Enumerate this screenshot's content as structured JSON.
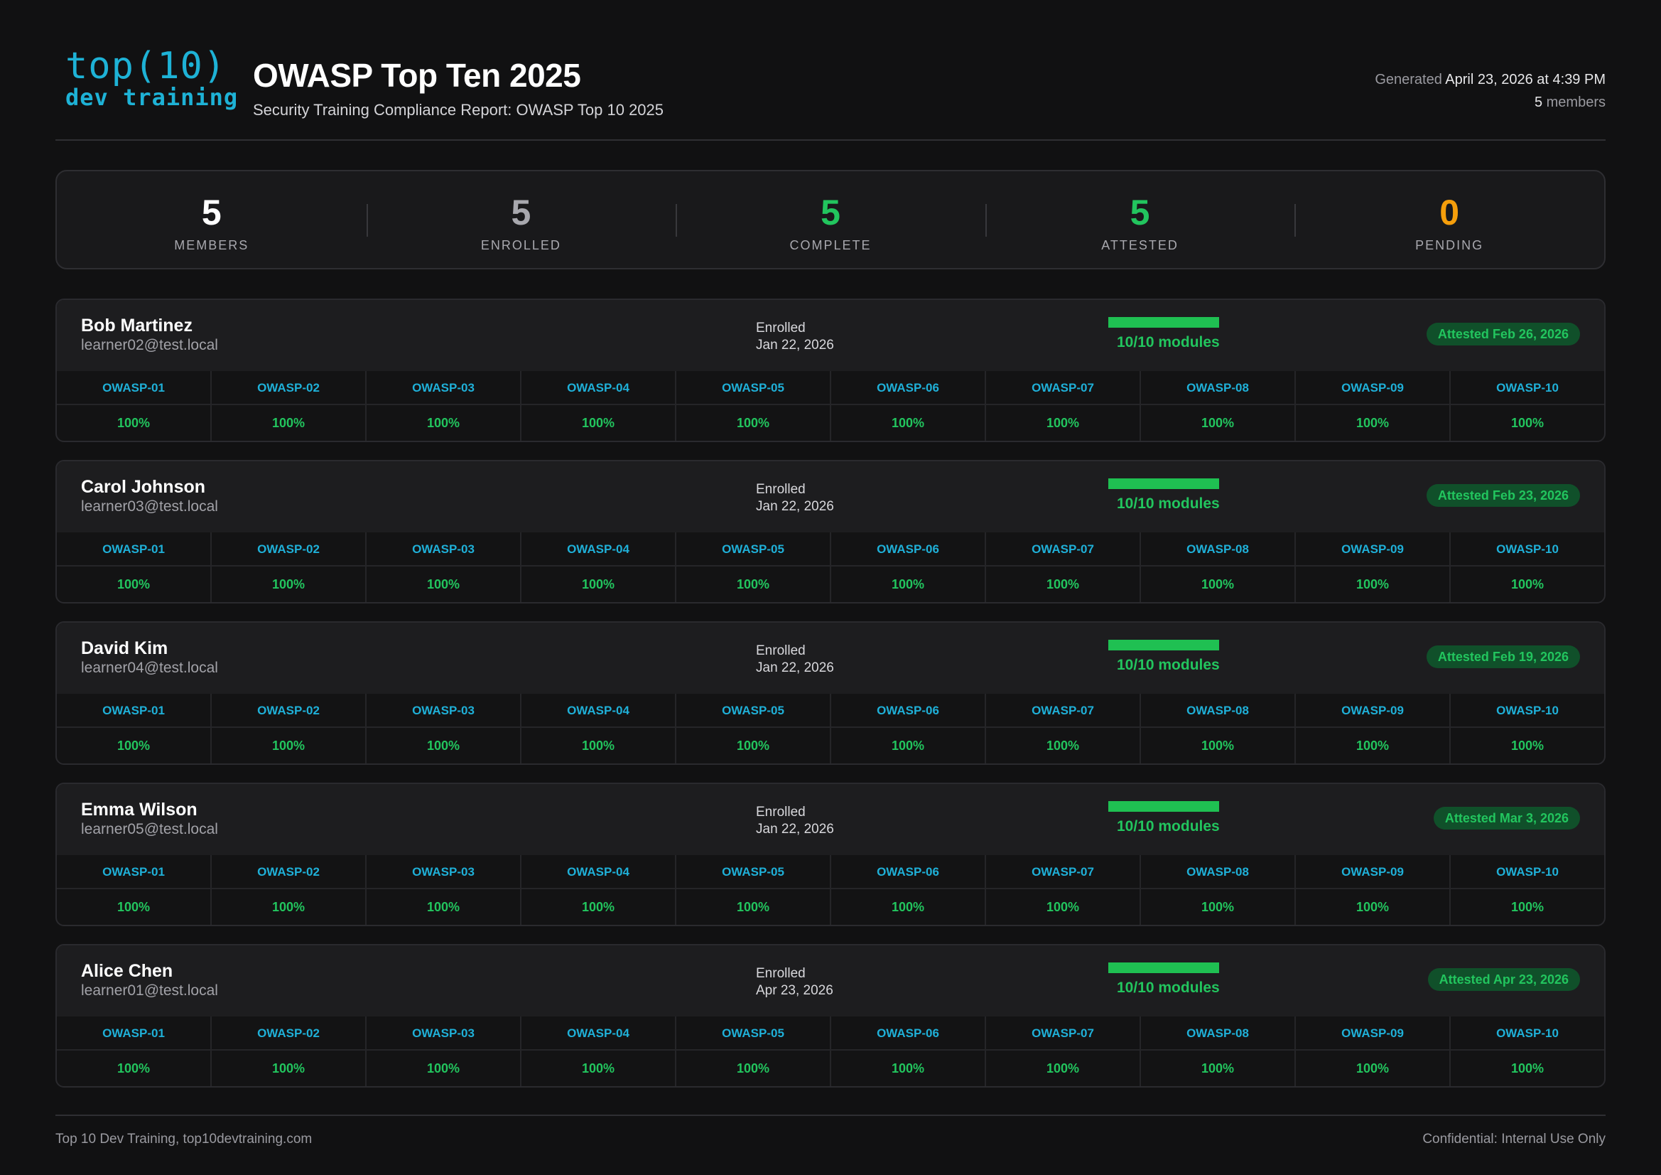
{
  "logo": {
    "line1": "top(10)",
    "line2": "dev training"
  },
  "header": {
    "title": "OWASP Top Ten 2025",
    "subtitle": "Security Training Compliance Report: OWASP Top 10 2025",
    "generated_label": "Generated",
    "generated_value": "April 23, 2026 at 4:39 PM",
    "members_count": "5",
    "members_label": "members"
  },
  "colors": {
    "accent": "#1eb2d6",
    "success": "#22c55e",
    "pending": "#f59e0b",
    "muted": "#a8a8ae"
  },
  "stats": [
    {
      "value": "5",
      "label": "MEMBERS",
      "color": "#ffffff"
    },
    {
      "value": "5",
      "label": "ENROLLED",
      "color": "#a8a8ae"
    },
    {
      "value": "5",
      "label": "COMPLETE",
      "color": "#22c55e"
    },
    {
      "value": "5",
      "label": "ATTESTED",
      "color": "#22c55e"
    },
    {
      "value": "0",
      "label": "PENDING",
      "color": "#f59e0b"
    }
  ],
  "members": [
    {
      "name": "Bob Martinez",
      "email": "learner02@test.local",
      "enrolled_label": "Enrolled",
      "enrolled_date": "Jan 22, 2026",
      "progress": 1.0,
      "modules": "10/10 modules",
      "attested": "Attested Feb 26, 2026"
    },
    {
      "name": "Carol Johnson",
      "email": "learner03@test.local",
      "enrolled_label": "Enrolled",
      "enrolled_date": "Jan 22, 2026",
      "progress": 1.0,
      "modules": "10/10 modules",
      "attested": "Attested Feb 23, 2026"
    },
    {
      "name": "David Kim",
      "email": "learner04@test.local",
      "enrolled_label": "Enrolled",
      "enrolled_date": "Jan 22, 2026",
      "progress": 1.0,
      "modules": "10/10 modules",
      "attested": "Attested Feb 19, 2026"
    },
    {
      "name": "Emma Wilson",
      "email": "learner05@test.local",
      "enrolled_label": "Enrolled",
      "enrolled_date": "Jan 22, 2026",
      "progress": 1.0,
      "modules": "10/10 modules",
      "attested": "Attested Mar 3, 2026"
    },
    {
      "name": "Alice Chen",
      "email": "learner01@test.local",
      "enrolled_label": "Enrolled",
      "enrolled_date": "Apr 23, 2026",
      "progress": 1.0,
      "modules": "10/10 modules",
      "attested": "Attested Apr 23, 2026"
    }
  ],
  "module_codes": [
    "OWASP-01",
    "OWASP-02",
    "OWASP-03",
    "OWASP-04",
    "OWASP-05",
    "OWASP-06",
    "OWASP-07",
    "OWASP-08",
    "OWASP-09",
    "OWASP-10"
  ],
  "module_scores": [
    "100%",
    "100%",
    "100%",
    "100%",
    "100%",
    "100%",
    "100%",
    "100%",
    "100%",
    "100%"
  ],
  "footer": {
    "left": "Top 10 Dev Training, top10devtraining.com",
    "right": "Confidential: Internal Use Only"
  }
}
